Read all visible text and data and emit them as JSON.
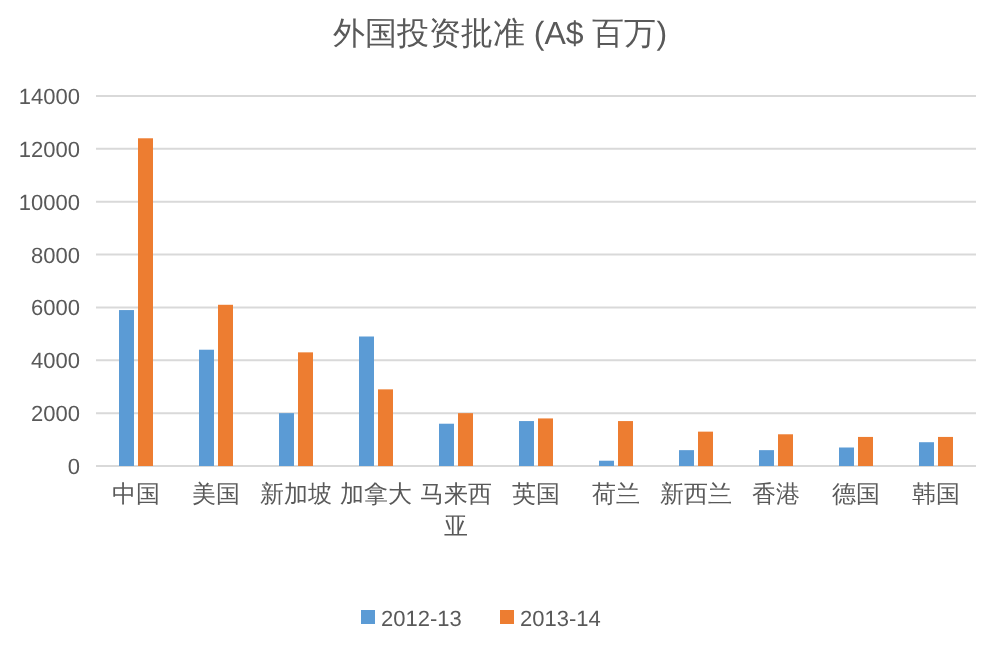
{
  "chart_data": {
    "type": "bar",
    "title": "外国投资批准 (A$ 百万)",
    "categories": [
      "中国",
      "美国",
      "新加坡",
      "加拿大",
      "马来西亚",
      "英国",
      "荷兰",
      "新西兰",
      "香港",
      "德国",
      "韩国"
    ],
    "series": [
      {
        "name": "2012-13",
        "color": "#5b9bd5",
        "values": [
          5900,
          4400,
          2000,
          4900,
          1600,
          1700,
          200,
          600,
          600,
          700,
          900
        ]
      },
      {
        "name": "2013-14",
        "color": "#ed7d31",
        "values": [
          12400,
          6100,
          4300,
          2900,
          2000,
          1800,
          1700,
          1300,
          1200,
          1100,
          1100
        ]
      }
    ],
    "ylim": [
      0,
      14000
    ],
    "yticks": [
      0,
      2000,
      4000,
      6000,
      8000,
      10000,
      12000,
      14000
    ],
    "grid": "y",
    "legend": "bottom"
  }
}
